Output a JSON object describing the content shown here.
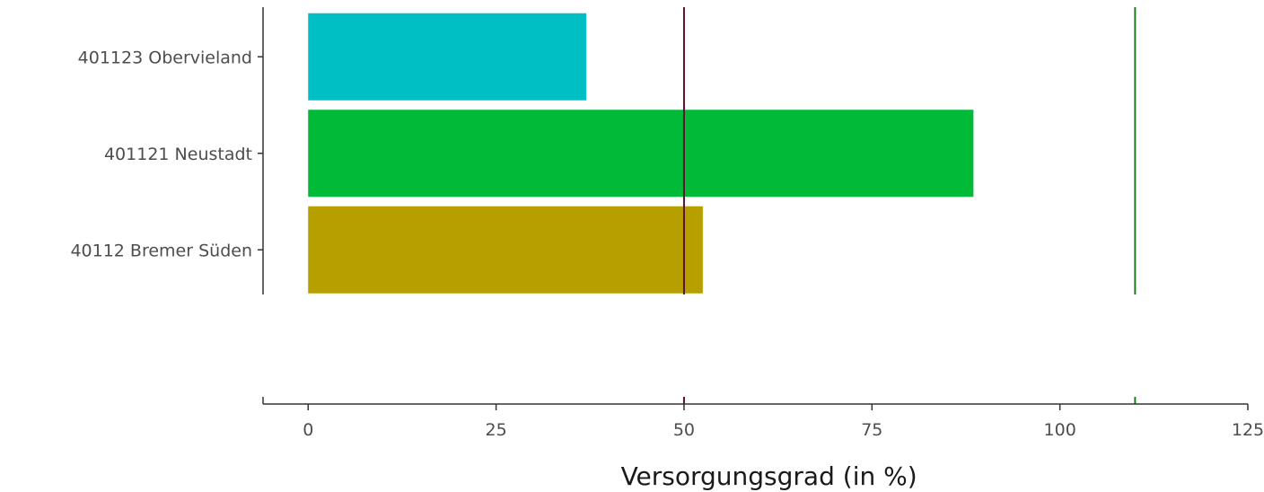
{
  "chart_data": {
    "type": "bar",
    "orientation": "horizontal",
    "categories": [
      "401123 Obervieland",
      "401121 Neustadt",
      "40112 Bremer Süden"
    ],
    "values": [
      37,
      88.5,
      52.5
    ],
    "bar_colors": [
      "#00BFC4",
      "#00BA38",
      "#B79F00"
    ],
    "xlabel": "Versorgungsgrad (in %)",
    "ylabel": "",
    "xlim": [
      -6,
      125
    ],
    "xticks": [
      0,
      25,
      50,
      75,
      100,
      125
    ],
    "xtick_labels": [
      "0",
      "25",
      "50",
      "75",
      "100",
      "125"
    ],
    "reference_lines": [
      {
        "x": 50,
        "color": "#5A0F2E"
      },
      {
        "x": 110,
        "color": "#1E7B1E"
      }
    ],
    "grid": false,
    "legend": "none"
  }
}
